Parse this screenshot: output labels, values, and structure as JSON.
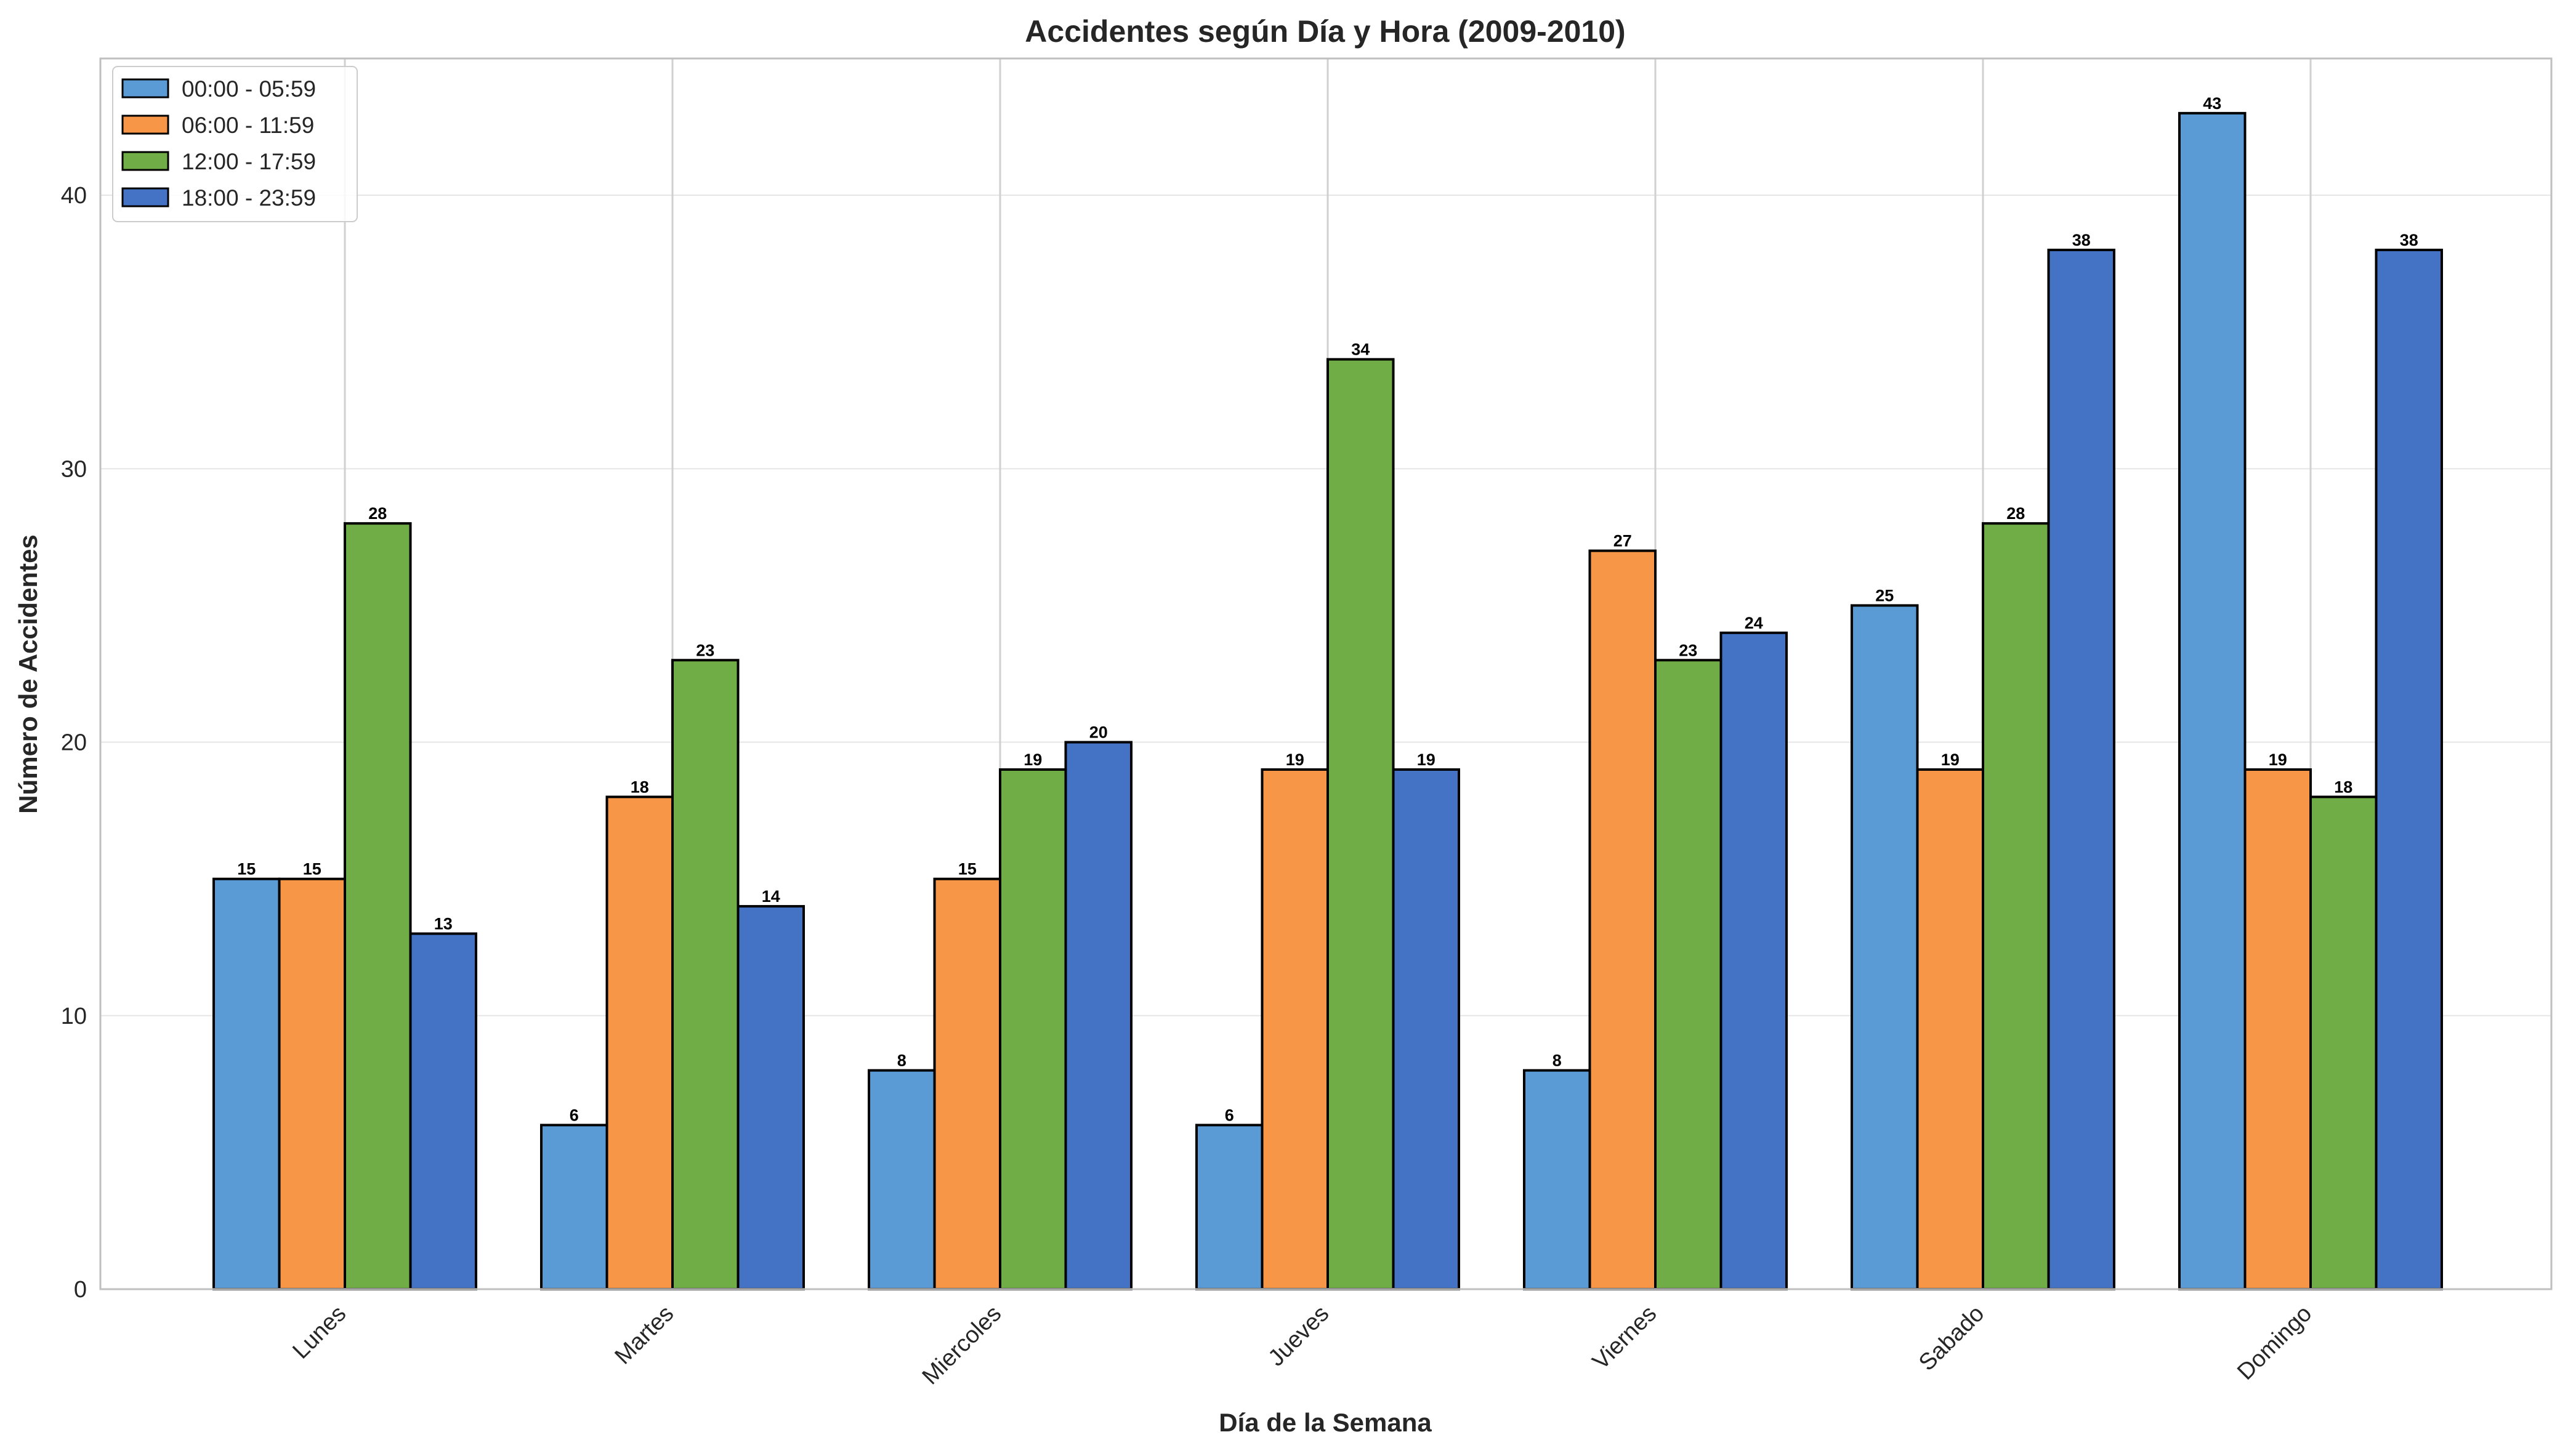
{
  "chart_data": {
    "type": "bar",
    "title": "Accidentes según Día y Hora (2009-2010)",
    "xlabel": "Día de la Semana",
    "ylabel": "Número de Accidentes",
    "ylim": [
      0,
      45
    ],
    "yticks": [
      0,
      10,
      20,
      30,
      40
    ],
    "grid": true,
    "legend_position": "top-left",
    "categories": [
      "Lunes",
      "Martes",
      "Miercoles",
      "Jueves",
      "Viernes",
      "Sabado",
      "Domingo"
    ],
    "series": [
      {
        "name": "00:00 - 05:59",
        "color": "#5b9bd5",
        "values": [
          15,
          6,
          8,
          6,
          8,
          25,
          43
        ]
      },
      {
        "name": "06:00 - 11:59",
        "color": "#f79646",
        "values": [
          15,
          18,
          15,
          19,
          27,
          19,
          19
        ]
      },
      {
        "name": "12:00 - 17:59",
        "color": "#70ad47",
        "values": [
          28,
          23,
          19,
          34,
          23,
          28,
          18
        ]
      },
      {
        "name": "18:00 - 23:59",
        "color": "#4472c4",
        "values": [
          13,
          14,
          20,
          19,
          24,
          38,
          38
        ]
      }
    ]
  }
}
